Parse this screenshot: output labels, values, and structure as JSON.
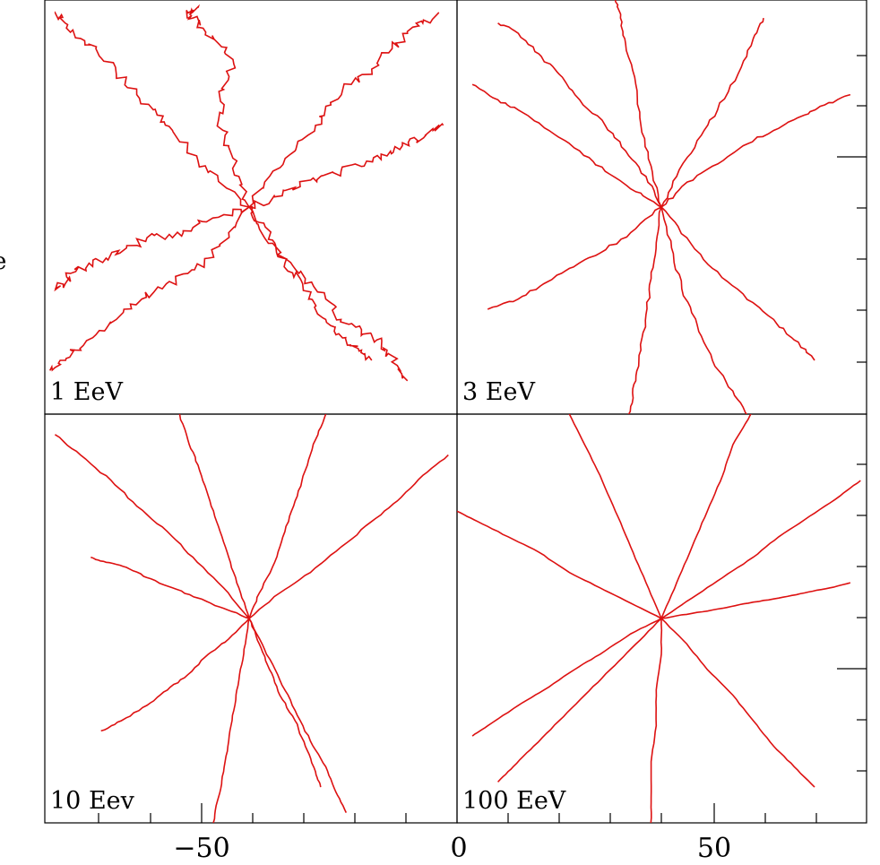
{
  "figure": {
    "left_edge_label": "e",
    "x_tick_labels": [
      "−50",
      "0",
      "50"
    ]
  },
  "chart_data": [
    {
      "type": "line",
      "title": "",
      "panel_label": "1 EeV",
      "xlabel": "",
      "ylabel": "",
      "xlim": [
        -80,
        0
      ],
      "grid": false,
      "description_of_tracks": "many tangled random-walk trajectories starting near the panel center",
      "line_color": "#dd1111",
      "series": [
        {
          "x": [
            -40,
            -46,
            -50,
            -55,
            -58,
            -62,
            -66,
            -70,
            -73,
            -76,
            -78
          ],
          "y": [
            0,
            5,
            9,
            15,
            18,
            22,
            26,
            31,
            33,
            36,
            38
          ]
        },
        {
          "x": [
            -40,
            -36,
            -31,
            -27,
            -24,
            -20,
            -16,
            -12,
            -9,
            -6,
            -3
          ],
          "y": [
            0,
            6,
            11,
            16,
            20,
            24,
            27,
            31,
            34,
            36,
            38
          ]
        },
        {
          "x": [
            -40,
            -44,
            -48,
            -52,
            -57,
            -61,
            -66,
            -70,
            -74,
            -77,
            -79
          ],
          "y": [
            0,
            -5,
            -10,
            -13,
            -16,
            -18,
            -22,
            -25,
            -28,
            -30,
            -32
          ]
        },
        {
          "x": [
            -40,
            -37,
            -33,
            -29,
            -25,
            -22,
            -18,
            -15,
            -13,
            -11,
            -9
          ],
          "y": [
            0,
            -6,
            -10,
            -14,
            -18,
            -22,
            -24,
            -26,
            -28,
            -31,
            -34
          ]
        },
        {
          "x": [
            -40,
            -42,
            -44,
            -46,
            -45,
            -43,
            -46,
            -49,
            -51,
            -52,
            -50
          ],
          "y": [
            0,
            6,
            12,
            17,
            23,
            28,
            32,
            35,
            37,
            38,
            39
          ]
        },
        {
          "x": [
            -40,
            -38,
            -35,
            -33,
            -30,
            -28,
            -25,
            -23,
            -20,
            -18,
            -16
          ],
          "y": [
            0,
            -3,
            -7,
            -11,
            -14,
            -18,
            -22,
            -25,
            -27,
            -28,
            -30
          ]
        },
        {
          "x": [
            -40,
            -46,
            -51,
            -55,
            -60,
            -64,
            -68,
            -72,
            -75,
            -76,
            -78
          ],
          "y": [
            0,
            -2,
            -4,
            -6,
            -6,
            -8,
            -10,
            -12,
            -13,
            -15,
            -16
          ]
        },
        {
          "x": [
            -40,
            -35,
            -30,
            -26,
            -22,
            -17,
            -13,
            -10,
            -7,
            -4,
            -2
          ],
          "y": [
            0,
            2,
            4,
            6,
            7,
            9,
            10,
            12,
            13,
            15,
            16
          ]
        }
      ]
    },
    {
      "type": "line",
      "title": "",
      "panel_label": "3 EeV",
      "xlabel": "",
      "ylabel": "",
      "xlim": [
        0,
        80
      ],
      "grid": false,
      "line_color": "#dd1111",
      "series": [
        {
          "x": [
            40,
            35,
            29,
            24,
            18,
            12,
            8,
            3
          ],
          "y": [
            0,
            3,
            7,
            11,
            15,
            19,
            21,
            24
          ]
        },
        {
          "x": [
            40,
            37,
            33,
            29,
            24,
            20,
            16,
            12,
            8
          ],
          "y": [
            0,
            6,
            11,
            16,
            21,
            26,
            30,
            34,
            36
          ]
        },
        {
          "x": [
            40,
            44,
            50,
            56,
            62,
            68,
            72,
            77
          ],
          "y": [
            0,
            4,
            8,
            12,
            15,
            18,
            20,
            22
          ]
        },
        {
          "x": [
            40,
            43,
            47,
            51,
            55,
            58,
            60
          ],
          "y": [
            0,
            6,
            13,
            19,
            26,
            33,
            37
          ]
        },
        {
          "x": [
            40,
            39,
            38,
            37,
            36,
            35,
            34,
            33
          ],
          "y": [
            0,
            -7,
            -14,
            -21,
            -28,
            -34,
            -39,
            -44
          ]
        },
        {
          "x": [
            40,
            45,
            50,
            56,
            62,
            66,
            70
          ],
          "y": [
            0,
            -6,
            -12,
            -17,
            -22,
            -26,
            -30
          ]
        },
        {
          "x": [
            40,
            34,
            28,
            22,
            17,
            12,
            6
          ],
          "y": [
            0,
            -5,
            -9,
            -12,
            -15,
            -18,
            -20
          ]
        },
        {
          "x": [
            40,
            42,
            44,
            47,
            50,
            54,
            57
          ],
          "y": [
            0,
            -8,
            -16,
            -23,
            -30,
            -36,
            -41
          ]
        },
        {
          "x": [
            40,
            38,
            36,
            35,
            33,
            32,
            31
          ],
          "y": [
            0,
            8,
            16,
            24,
            32,
            37,
            41
          ]
        }
      ]
    },
    {
      "type": "line",
      "title": "",
      "panel_label": "10 Eev",
      "xlabel": "",
      "ylabel": "",
      "xlim": [
        -80,
        0
      ],
      "grid": false,
      "line_color": "#dd1111",
      "series": [
        {
          "x": [
            -40,
            -45,
            -51,
            -56,
            -62,
            -67,
            -73,
            -78
          ],
          "y": [
            0,
            6,
            12,
            17,
            22,
            27,
            32,
            36
          ]
        },
        {
          "x": [
            -40,
            -34,
            -28,
            -22,
            -16,
            -11,
            -6,
            -1
          ],
          "y": [
            0,
            5,
            9,
            14,
            19,
            23,
            28,
            32
          ]
        },
        {
          "x": [
            -40,
            -42,
            -44,
            -46,
            -48,
            -50,
            -52,
            -54
          ],
          "y": [
            0,
            6,
            12,
            18,
            24,
            30,
            35,
            41
          ]
        },
        {
          "x": [
            -40,
            -38,
            -35,
            -33,
            -31,
            -29,
            -27,
            -25
          ],
          "y": [
            0,
            5,
            11,
            17,
            23,
            29,
            35,
            40
          ]
        },
        {
          "x": [
            -40,
            -44,
            -48,
            -52,
            -56,
            -60,
            -65,
            -69
          ],
          "y": [
            0,
            -4,
            -7,
            -11,
            -14,
            -17,
            -20,
            -22
          ]
        },
        {
          "x": [
            -40,
            -41,
            -42,
            -43,
            -44,
            -45,
            -46,
            -47
          ],
          "y": [
            0,
            -6,
            -12,
            -18,
            -24,
            -30,
            -35,
            -40
          ]
        },
        {
          "x": [
            -40,
            -38,
            -36,
            -34,
            -31,
            -29,
            -27,
            -26
          ],
          "y": [
            0,
            -5,
            -10,
            -15,
            -20,
            -25,
            -30,
            -33
          ]
        },
        {
          "x": [
            -40,
            -37,
            -34,
            -31,
            -28,
            -25,
            -23,
            -21
          ],
          "y": [
            0,
            -6,
            -12,
            -18,
            -24,
            -29,
            -34,
            -38
          ]
        },
        {
          "x": [
            -40,
            -45,
            -50,
            -55,
            -60,
            -64,
            -68,
            -71
          ],
          "y": [
            0,
            2,
            4,
            6,
            8,
            10,
            11,
            12
          ]
        }
      ]
    },
    {
      "type": "line",
      "title": "",
      "panel_label": "100 EeV",
      "xlabel": "",
      "ylabel": "",
      "xlim": [
        0,
        80
      ],
      "grid": false,
      "line_color": "#dd1111",
      "series": [
        {
          "x": [
            40,
            34,
            28,
            22,
            16,
            10,
            4,
            0
          ],
          "y": [
            0,
            3,
            6,
            9,
            13,
            16,
            19,
            21
          ]
        },
        {
          "x": [
            40,
            46,
            52,
            58,
            63,
            69,
            75,
            79
          ],
          "y": [
            0,
            4,
            8,
            12,
            16,
            20,
            24,
            27
          ]
        },
        {
          "x": [
            40,
            37,
            34,
            31,
            28,
            25,
            22,
            20
          ],
          "y": [
            0,
            7,
            14,
            21,
            28,
            34,
            40,
            44
          ]
        },
        {
          "x": [
            40,
            43,
            46,
            49,
            52,
            54,
            57,
            59
          ],
          "y": [
            0,
            7,
            14,
            21,
            28,
            34,
            39,
            43
          ]
        },
        {
          "x": [
            40,
            34,
            28,
            23,
            17,
            12,
            6,
            3
          ],
          "y": [
            0,
            -3,
            -7,
            -10,
            -14,
            -17,
            -21,
            -23
          ]
        },
        {
          "x": [
            40,
            40,
            39,
            39,
            38,
            38,
            38,
            37
          ],
          "y": [
            0,
            -7,
            -14,
            -21,
            -28,
            -35,
            -41,
            -45
          ]
        },
        {
          "x": [
            40,
            45,
            49,
            54,
            58,
            62,
            66,
            70
          ],
          "y": [
            0,
            -5,
            -10,
            -15,
            -20,
            -25,
            -29,
            -33
          ]
        },
        {
          "x": [
            40,
            35,
            30,
            25,
            20,
            15,
            11,
            8
          ],
          "y": [
            0,
            -5,
            -10,
            -15,
            -20,
            -25,
            -29,
            -32
          ]
        },
        {
          "x": [
            40,
            46,
            52,
            57,
            63,
            68,
            73,
            77
          ],
          "y": [
            0,
            1,
            2,
            3,
            4,
            5,
            6,
            7
          ]
        }
      ]
    }
  ]
}
